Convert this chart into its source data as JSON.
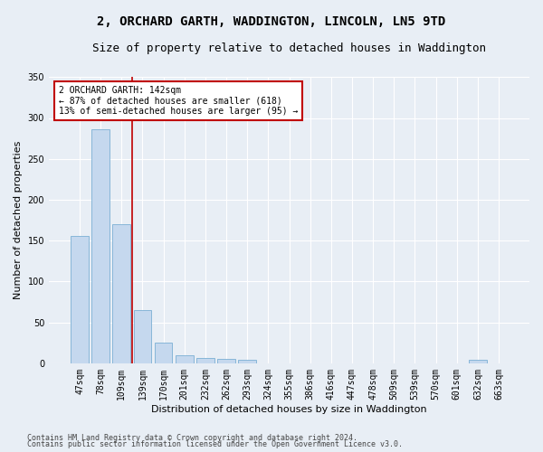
{
  "title": "2, ORCHARD GARTH, WADDINGTON, LINCOLN, LN5 9TD",
  "subtitle": "Size of property relative to detached houses in Waddington",
  "xlabel": "Distribution of detached houses by size in Waddington",
  "ylabel": "Number of detached properties",
  "categories": [
    "47sqm",
    "78sqm",
    "109sqm",
    "139sqm",
    "170sqm",
    "201sqm",
    "232sqm",
    "262sqm",
    "293sqm",
    "324sqm",
    "355sqm",
    "386sqm",
    "416sqm",
    "447sqm",
    "478sqm",
    "509sqm",
    "539sqm",
    "570sqm",
    "601sqm",
    "632sqm",
    "663sqm"
  ],
  "values": [
    156,
    286,
    170,
    65,
    25,
    10,
    7,
    5,
    4,
    0,
    0,
    0,
    0,
    0,
    0,
    0,
    0,
    0,
    0,
    4,
    0
  ],
  "bar_color": "#c5d8ee",
  "bar_edge_color": "#7bafd4",
  "vline_color": "#c00000",
  "annotation_text": "2 ORCHARD GARTH: 142sqm\n← 87% of detached houses are smaller (618)\n13% of semi-detached houses are larger (95) →",
  "annotation_box_color": "#ffffff",
  "annotation_box_edge": "#c00000",
  "ylim": [
    0,
    350
  ],
  "yticks": [
    0,
    50,
    100,
    150,
    200,
    250,
    300,
    350
  ],
  "footer1": "Contains HM Land Registry data © Crown copyright and database right 2024.",
  "footer2": "Contains public sector information licensed under the Open Government Licence v3.0.",
  "bg_color": "#e8eef5",
  "plot_bg_color": "#e8eef5",
  "grid_color": "#ffffff",
  "title_fontsize": 10,
  "subtitle_fontsize": 9,
  "axis_label_fontsize": 8,
  "tick_fontsize": 7,
  "footer_fontsize": 6,
  "annot_fontsize": 7
}
